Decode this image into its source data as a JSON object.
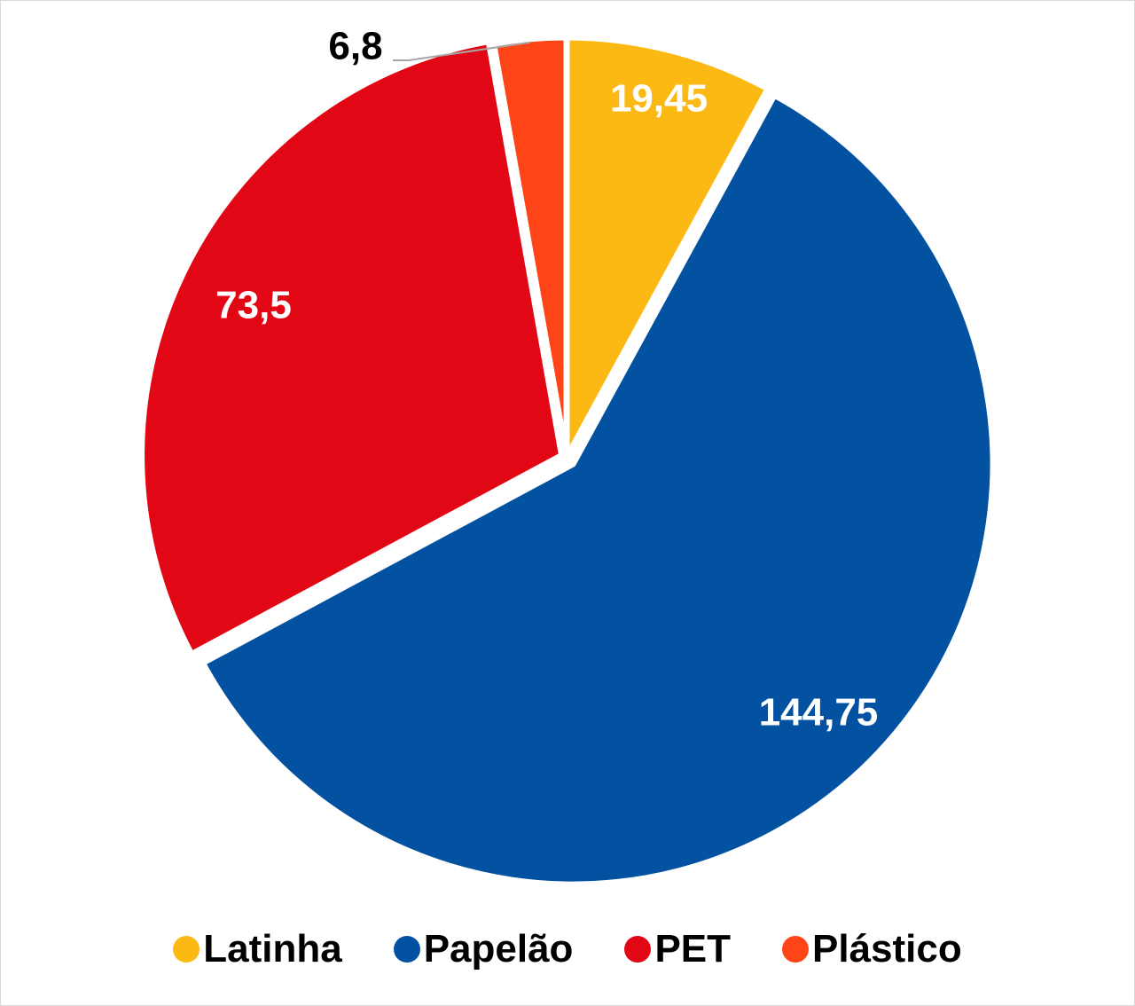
{
  "chart_data": {
    "type": "pie",
    "categories": [
      "Latinha",
      "Papelão",
      "PET",
      "Plástico"
    ],
    "values": [
      19.45,
      144.75,
      73.5,
      6.8
    ],
    "data_labels": [
      "19,45",
      "144,75",
      "73,5",
      "6,8"
    ],
    "colors": [
      "#FDB913",
      "#0351A1",
      "#E10715",
      "#FF4417"
    ],
    "label_colors": [
      "#ffffff",
      "#ffffff",
      "#ffffff",
      "#000000"
    ],
    "start_angle": "12 o'clock",
    "direction": "clockwise",
    "legend_position": "bottom"
  },
  "legend": {
    "items": [
      {
        "label": "Latinha",
        "color": "#FDB913"
      },
      {
        "label": "Papelão",
        "color": "#0351A1"
      },
      {
        "label": "PET",
        "color": "#E10715"
      },
      {
        "label": "Plástico",
        "color": "#FF4417"
      }
    ]
  }
}
